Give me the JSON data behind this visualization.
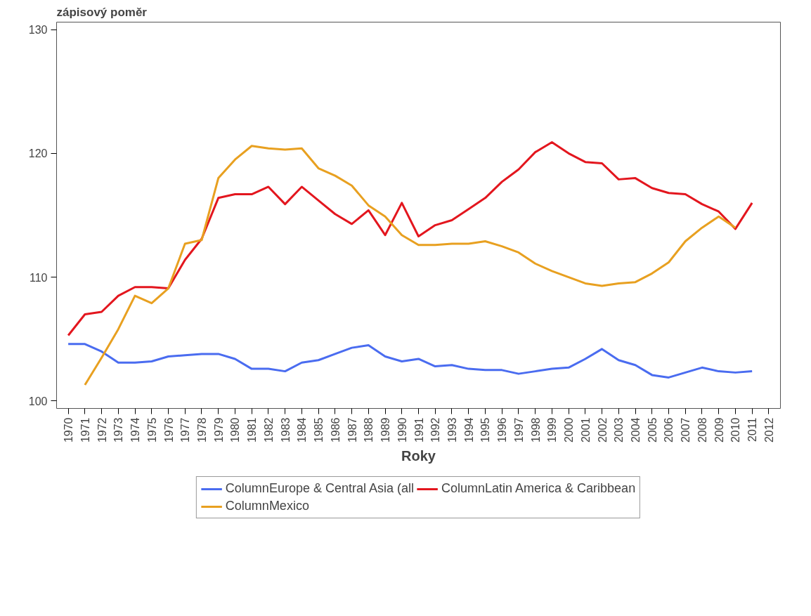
{
  "chart_data": {
    "type": "line",
    "title": "zápisový poměr",
    "xlabel": "Roky",
    "categories": [
      "1970",
      "1971",
      "1972",
      "1973",
      "1974",
      "1975",
      "1976",
      "1977",
      "1978",
      "1979",
      "1980",
      "1981",
      "1982",
      "1983",
      "1984",
      "1985",
      "1986",
      "1987",
      "1988",
      "1989",
      "1990",
      "1991",
      "1992",
      "1993",
      "1994",
      "1995",
      "1996",
      "1997",
      "1998",
      "1999",
      "2000",
      "2001",
      "2002",
      "2003",
      "2004",
      "2005",
      "2006",
      "2007",
      "2008",
      "2009",
      "2010",
      "2011",
      "2012"
    ],
    "series": [
      {
        "name": "ColumnEurope & Central Asia (all",
        "color": "#4a6cf0",
        "values": [
          104.6,
          104.6,
          104.0,
          103.1,
          103.1,
          103.2,
          103.6,
          103.7,
          103.8,
          103.8,
          103.4,
          102.6,
          102.6,
          102.4,
          103.1,
          103.3,
          103.8,
          104.3,
          104.5,
          103.6,
          103.2,
          103.4,
          102.8,
          102.9,
          102.6,
          102.5,
          102.5,
          102.2,
          102.4,
          102.6,
          102.7,
          103.4,
          104.2,
          103.3,
          102.9,
          102.1,
          101.9,
          102.3,
          102.7,
          102.4,
          102.3,
          102.4,
          null
        ]
      },
      {
        "name": "ColumnLatin America & Caribbean",
        "color": "#e3161e",
        "values": [
          105.3,
          107.0,
          107.2,
          108.5,
          109.2,
          109.2,
          109.1,
          111.4,
          113.1,
          116.4,
          116.7,
          116.7,
          117.3,
          115.9,
          117.3,
          116.2,
          115.1,
          114.3,
          115.4,
          113.4,
          116.0,
          113.3,
          114.2,
          114.6,
          115.5,
          116.4,
          117.7,
          118.7,
          120.1,
          120.9,
          120.0,
          119.3,
          119.2,
          117.9,
          118.0,
          117.2,
          116.8,
          116.7,
          115.9,
          115.3,
          113.9,
          116.0,
          null
        ]
      },
      {
        "name": "ColumnMexico",
        "color": "#e8a020",
        "values": [
          null,
          101.3,
          103.5,
          105.8,
          108.5,
          107.9,
          109.1,
          112.7,
          113.0,
          118.0,
          119.5,
          120.6,
          120.4,
          120.3,
          120.4,
          118.8,
          118.2,
          117.4,
          115.8,
          114.9,
          113.4,
          112.6,
          112.6,
          112.7,
          112.7,
          112.9,
          112.5,
          112.0,
          111.1,
          110.5,
          110.0,
          109.5,
          109.3,
          109.5,
          109.6,
          110.3,
          111.2,
          112.9,
          114.0,
          114.9,
          114.0,
          null,
          null
        ]
      }
    ],
    "ylim": [
      99.4,
      130.6
    ],
    "yticks": [
      100,
      110,
      120,
      130
    ],
    "grid": false,
    "legend": "bottom",
    "marker": "none",
    "line_style": "solid"
  }
}
